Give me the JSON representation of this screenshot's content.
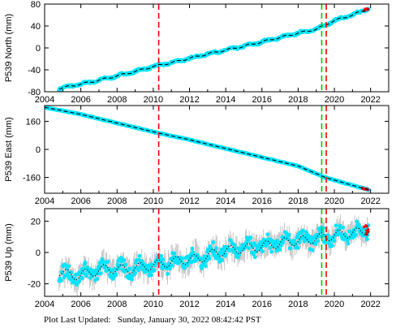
{
  "chart_data": [
    {
      "type": "scatter",
      "ylabel": "P539 North (mm)",
      "xlim": [
        2004,
        2023
      ],
      "ylim": [
        -80,
        80
      ],
      "xticks": [
        2004,
        2006,
        2008,
        2010,
        2012,
        2014,
        2016,
        2018,
        2020,
        2022
      ],
      "yticks": [
        -80,
        -40,
        0,
        40,
        80
      ],
      "series": [
        {
          "role": "daily-positions",
          "color": "#00e5ff",
          "x": [
            2004.8,
            2006.0,
            2007.0,
            2008.0,
            2009.0,
            2010.0,
            2011.0,
            2012.0,
            2013.0,
            2014.0,
            2015.0,
            2016.0,
            2017.0,
            2018.0,
            2019.0,
            2020.0,
            2021.0,
            2021.9
          ],
          "y": [
            -74,
            -66,
            -59,
            -51,
            -43,
            -34,
            -27,
            -19,
            -11,
            -4,
            3,
            11,
            19,
            27,
            34,
            50,
            60,
            72
          ]
        },
        {
          "role": "trend",
          "color": "#000000",
          "x": [
            2004.8,
            2021.9
          ],
          "y": [
            -74,
            72
          ]
        }
      ],
      "vlines": [
        {
          "x": 2010.3,
          "color": "#ff0000"
        },
        {
          "x": 2019.3,
          "color": "#00cc00"
        },
        {
          "x": 2019.55,
          "color": "#ff0000"
        }
      ]
    },
    {
      "type": "scatter",
      "ylabel": "P539 East (mm)",
      "xlim": [
        2004,
        2023
      ],
      "ylim": [
        -250,
        250
      ],
      "xticks": [
        2004,
        2006,
        2008,
        2010,
        2012,
        2014,
        2016,
        2018,
        2020,
        2022
      ],
      "yticks": [
        -160,
        0,
        160
      ],
      "series": [
        {
          "role": "daily-positions",
          "color": "#00e5ff",
          "x": [
            2004.0,
            2006.0,
            2008.0,
            2010.0,
            2012.0,
            2014.0,
            2016.0,
            2018.0,
            2019.5,
            2020.0,
            2021.0,
            2021.9
          ],
          "y": [
            240,
            200,
            150,
            100,
            55,
            5,
            -45,
            -95,
            -160,
            -175,
            -205,
            -230
          ]
        },
        {
          "role": "trend",
          "color": "#000000",
          "x": [
            2004.0,
            2021.9
          ],
          "y": [
            240,
            -230
          ]
        }
      ],
      "vlines": [
        {
          "x": 2010.3,
          "color": "#ff0000"
        },
        {
          "x": 2019.3,
          "color": "#00cc00"
        },
        {
          "x": 2019.55,
          "color": "#ff0000"
        }
      ]
    },
    {
      "type": "scatter",
      "ylabel": "P539 Up (mm)",
      "xlim": [
        2004,
        2023
      ],
      "ylim": [
        -28,
        28
      ],
      "xticks": [
        2004,
        2006,
        2008,
        2010,
        2012,
        2014,
        2016,
        2018,
        2020,
        2022
      ],
      "yticks": [
        -20,
        0,
        20
      ],
      "series": [
        {
          "role": "daily-positions",
          "color": "#00e5ff",
          "x": [
            2004.8,
            2005.5,
            2006.5,
            2007.5,
            2008.5,
            2009.5,
            2010.5,
            2011.5,
            2012.5,
            2013.5,
            2014.5,
            2015.5,
            2016.5,
            2017.5,
            2018.5,
            2019.5,
            2020.5,
            2021.5,
            2021.9
          ],
          "y": [
            -12,
            -15,
            -13,
            -10,
            -11,
            -9,
            -7,
            -5,
            -4,
            0,
            2,
            3,
            5,
            7,
            8,
            10,
            12,
            13,
            15
          ]
        },
        {
          "role": "trend",
          "color": "#000000",
          "x": [
            2004.8,
            2021.9
          ],
          "y": [
            -14,
            16
          ]
        }
      ],
      "vlines": [
        {
          "x": 2010.3,
          "color": "#ff0000"
        },
        {
          "x": 2019.3,
          "color": "#00cc00"
        },
        {
          "x": 2019.55,
          "color": "#ff0000"
        }
      ]
    }
  ],
  "footer": {
    "label": "Plot Last Updated:",
    "timestamp": "Sunday, January 30, 2022 08:42:42 PST"
  }
}
